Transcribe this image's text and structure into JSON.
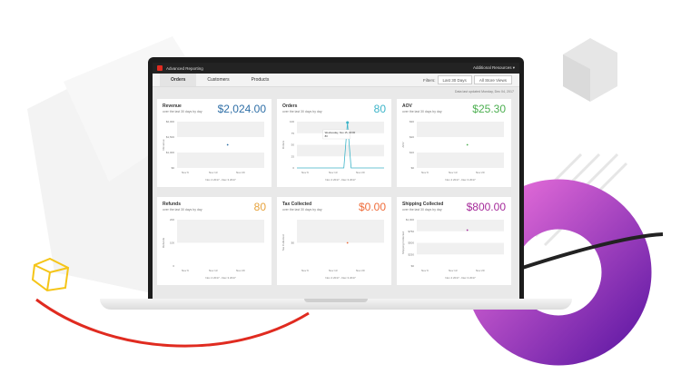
{
  "topbar": {
    "app_title": "Advanced Reporting",
    "resources": "Additional Resources ▾"
  },
  "tabs": [
    {
      "label": "Orders",
      "active": true
    },
    {
      "label": "Customers"
    },
    {
      "label": "Products"
    }
  ],
  "filters": {
    "label": "Filters:",
    "range": "Last 30 Days",
    "store": "All Store Views"
  },
  "updated": "Data last updated Monday, Dec 04, 2017",
  "colors": {
    "accent": "#e02b20",
    "revenue": "#2f6fa7",
    "orders": "#3cb4c8",
    "aov": "#4caf50",
    "refunds": "#e6a23c",
    "tax": "#ef6c3a",
    "shipping": "#a52a9a"
  },
  "cards": [
    {
      "title": "Revenue",
      "subtitle": "over the last 30 days by day",
      "value": "$2,024.00",
      "color": "#2f6fa7",
      "ylabel": "Revenue",
      "yticks": [
        "$2,000",
        "$1,500",
        "$1,000",
        "$0"
      ],
      "xticks": [
        "Nov 6",
        "Nov 13",
        "Nov 20"
      ],
      "range": "Nov 4 2017 - Dec 3 2017",
      "type": "dot"
    },
    {
      "title": "Orders",
      "subtitle": "over the last 30 days by day",
      "value": "80",
      "color": "#3cb4c8",
      "ylabel": "Orders",
      "yticks": [
        "100",
        "75",
        "50",
        "25",
        "0"
      ],
      "xticks": [
        "Nov 6",
        "Nov 13",
        "Nov 20"
      ],
      "range": "Nov 4 2017 - Dec 3 2017",
      "type": "spike",
      "tooltip": {
        "date": "Wednesday, Nov 15, 00:00",
        "value": "80"
      }
    },
    {
      "title": "AOV",
      "subtitle": "over the last 30 days by day",
      "value": "$25.30",
      "color": "#4caf50",
      "ylabel": "AOV",
      "yticks": [
        "$30",
        "$20",
        "$10",
        "$0"
      ],
      "xticks": [
        "Nov 6",
        "Nov 13",
        "Nov 20"
      ],
      "range": "Nov 4 2017 - Dec 3 2017",
      "type": "dot"
    },
    {
      "title": "Refunds",
      "subtitle": "over the last 30 days by day",
      "value": "80",
      "color": "#e6a23c",
      "ylabel": "Refunds",
      "yticks": [
        "200",
        "100",
        "0"
      ],
      "xticks": [
        "Nov 6",
        "Nov 13",
        "Nov 20"
      ],
      "range": "Nov 4 2017 - Dec 3 2017",
      "type": "none"
    },
    {
      "title": "Tax Collected",
      "subtitle": "over the last 30 days by day",
      "value": "$0.00",
      "color": "#ef6c3a",
      "ylabel": "Tax Collected",
      "yticks": [
        "$0"
      ],
      "xticks": [
        "Nov 6",
        "Nov 13",
        "Nov 20"
      ],
      "range": "Nov 4 2017 - Dec 3 2017",
      "type": "dot"
    },
    {
      "title": "Shipping Collected",
      "subtitle": "over the last 30 days by day",
      "value": "$800.00",
      "color": "#a52a9a",
      "ylabel": "Shipping Collected",
      "yticks": [
        "$1,000",
        "$750",
        "$500",
        "$250",
        "$0"
      ],
      "xticks": [
        "Nov 6",
        "Nov 13",
        "Nov 20"
      ],
      "range": "Nov 4 2017 - Dec 3 2017",
      "type": "dot"
    }
  ]
}
